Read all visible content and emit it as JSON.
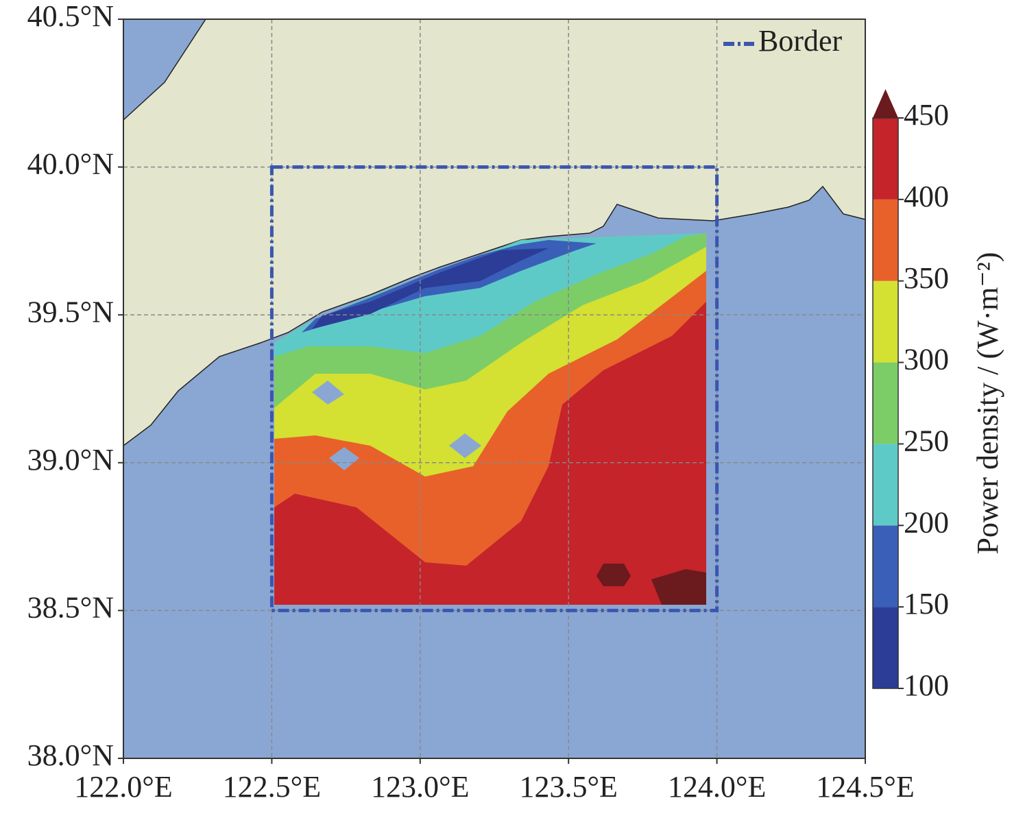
{
  "map": {
    "xlim": [
      122.0,
      124.5
    ],
    "ylim": [
      38.0,
      40.5
    ],
    "xticks": [
      {
        "value": 122.0,
        "label": "122.0°E"
      },
      {
        "value": 122.5,
        "label": "122.5°E"
      },
      {
        "value": 123.0,
        "label": "123.0°E"
      },
      {
        "value": 123.5,
        "label": "123.5°E"
      },
      {
        "value": 124.0,
        "label": "124.0°E"
      },
      {
        "value": 124.5,
        "label": "124.5°E"
      }
    ],
    "yticks": [
      {
        "value": 38.0,
        "label": "38.0°N"
      },
      {
        "value": 38.5,
        "label": "38.5°N"
      },
      {
        "value": 39.0,
        "label": "39.0°N"
      },
      {
        "value": 39.5,
        "label": "39.5°N"
      },
      {
        "value": 40.0,
        "label": "40.0°N"
      },
      {
        "value": 40.5,
        "label": "40.5°N"
      }
    ],
    "grid": true,
    "border": {
      "name": "Border",
      "lon": [
        122.5,
        124.0
      ],
      "lat": [
        38.5,
        40.0
      ],
      "color": "#3a56b0"
    },
    "colorbar": {
      "label": "Power density / (W·m⁻²)",
      "ticks": [
        100,
        150,
        200,
        250,
        300,
        350,
        400,
        450
      ],
      "colors": [
        "#2b3d97",
        "#3a5fb8",
        "#5ecac8",
        "#7ccd68",
        "#d4e032",
        "#e8612a",
        "#c4242a"
      ],
      "extend_color": "#6b1a1d"
    }
  }
}
